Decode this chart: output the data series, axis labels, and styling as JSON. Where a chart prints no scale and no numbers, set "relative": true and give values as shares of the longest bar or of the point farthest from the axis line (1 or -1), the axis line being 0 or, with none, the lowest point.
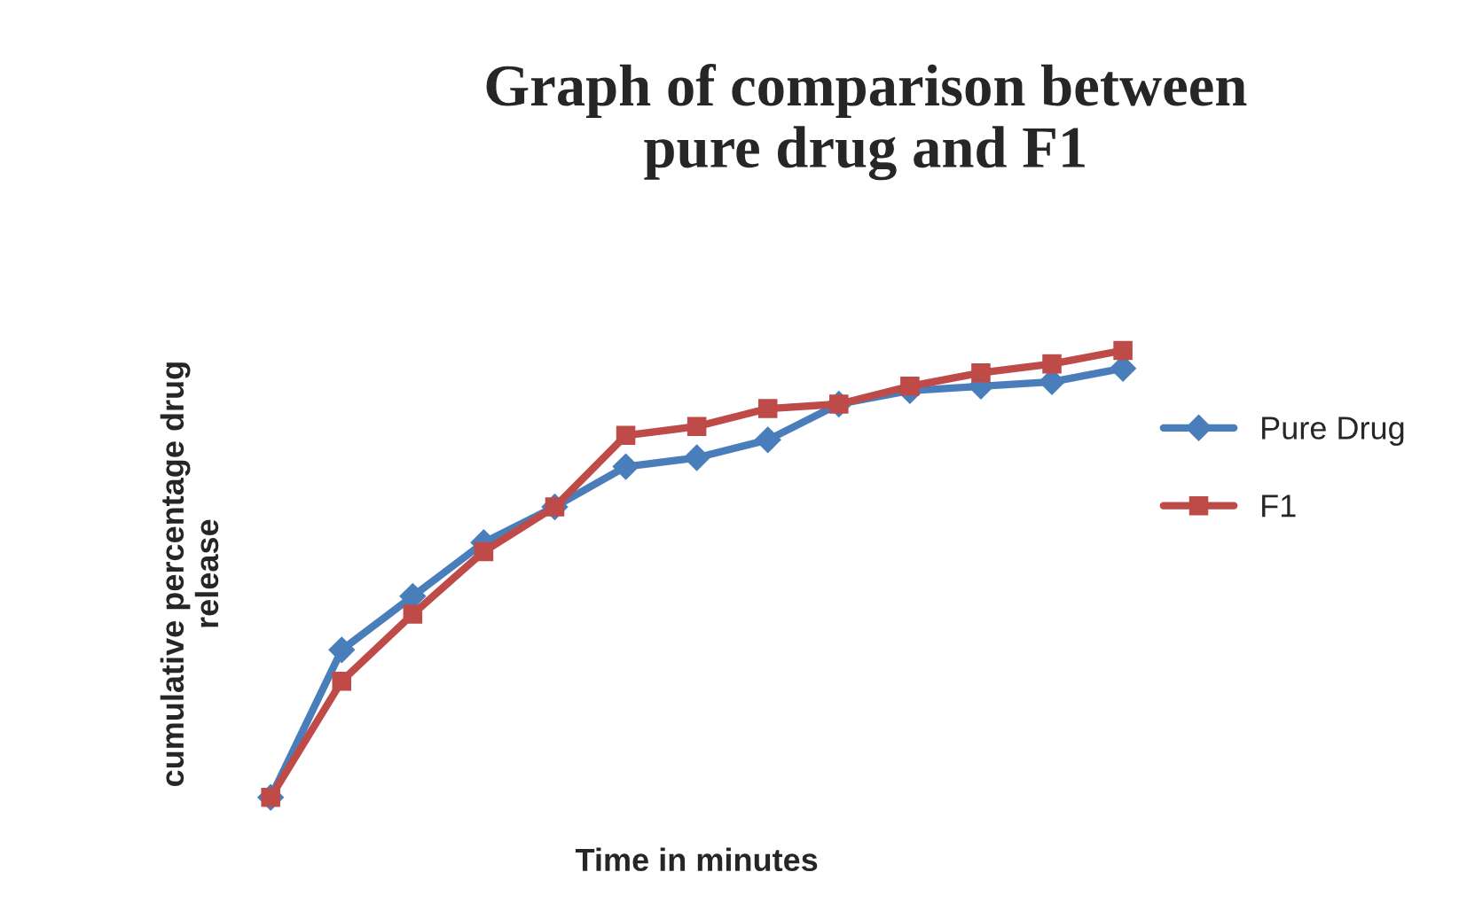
{
  "chart_data": {
    "type": "line",
    "title": "Graph of comparison between\npure drug and F1",
    "xlabel": "Time in minutes",
    "ylabel": "cumulative percentage drug\nrelease",
    "relative": true,
    "categories": [
      null,
      null,
      null,
      null,
      null,
      null,
      null,
      null,
      null,
      null,
      null,
      null,
      null
    ],
    "series": [
      {
        "name": "Pure Drug",
        "color": "#4a7ebb",
        "marker": "diamond",
        "values": [
          0,
          0.33,
          0.45,
          0.57,
          0.65,
          0.74,
          0.76,
          0.8,
          0.88,
          0.91,
          0.92,
          0.93,
          0.96
        ]
      },
      {
        "name": "F1",
        "color": "#be4b48",
        "marker": "square",
        "values": [
          0,
          0.26,
          0.41,
          0.55,
          0.65,
          0.81,
          0.83,
          0.87,
          0.88,
          0.92,
          0.95,
          0.97,
          1.0
        ]
      }
    ],
    "legend": "right",
    "grid": false,
    "line_style": "solid"
  }
}
